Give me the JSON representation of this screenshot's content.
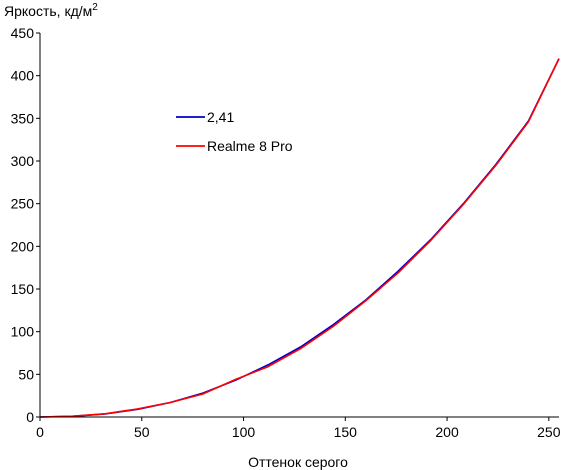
{
  "chart_data": {
    "type": "line",
    "ylabel": "Яркость, кд/м",
    "ylabel_sup": "2",
    "xlabel": "Оттенок серого",
    "xlim": [
      0,
      255
    ],
    "ylim": [
      0,
      450
    ],
    "xticks": [
      0,
      50,
      100,
      150,
      200,
      250
    ],
    "yticks": [
      0,
      50,
      100,
      150,
      200,
      250,
      300,
      350,
      400,
      450
    ],
    "grid": false,
    "legend_position": "upper-left-inside",
    "series": [
      {
        "name": "2,41",
        "color": "#0000cc",
        "x": [
          0,
          16,
          32,
          48,
          64,
          80,
          96,
          112,
          128,
          144,
          160,
          176,
          192,
          208,
          224,
          240,
          255
        ],
        "y": [
          0,
          0.8,
          3.6,
          9,
          17,
          28,
          43,
          61,
          82,
          108,
          137,
          171,
          208,
          250,
          296,
          347,
          420
        ]
      },
      {
        "name": "Realme 8 Pro",
        "color": "#ff0000",
        "x": [
          0,
          16,
          32,
          48,
          64,
          80,
          96,
          112,
          128,
          144,
          160,
          176,
          192,
          208,
          224,
          240,
          255
        ],
        "y": [
          0,
          0.9,
          3.8,
          9.5,
          17,
          27,
          44,
          59,
          80,
          106,
          136,
          169,
          207,
          249,
          295,
          346,
          420
        ]
      }
    ]
  }
}
